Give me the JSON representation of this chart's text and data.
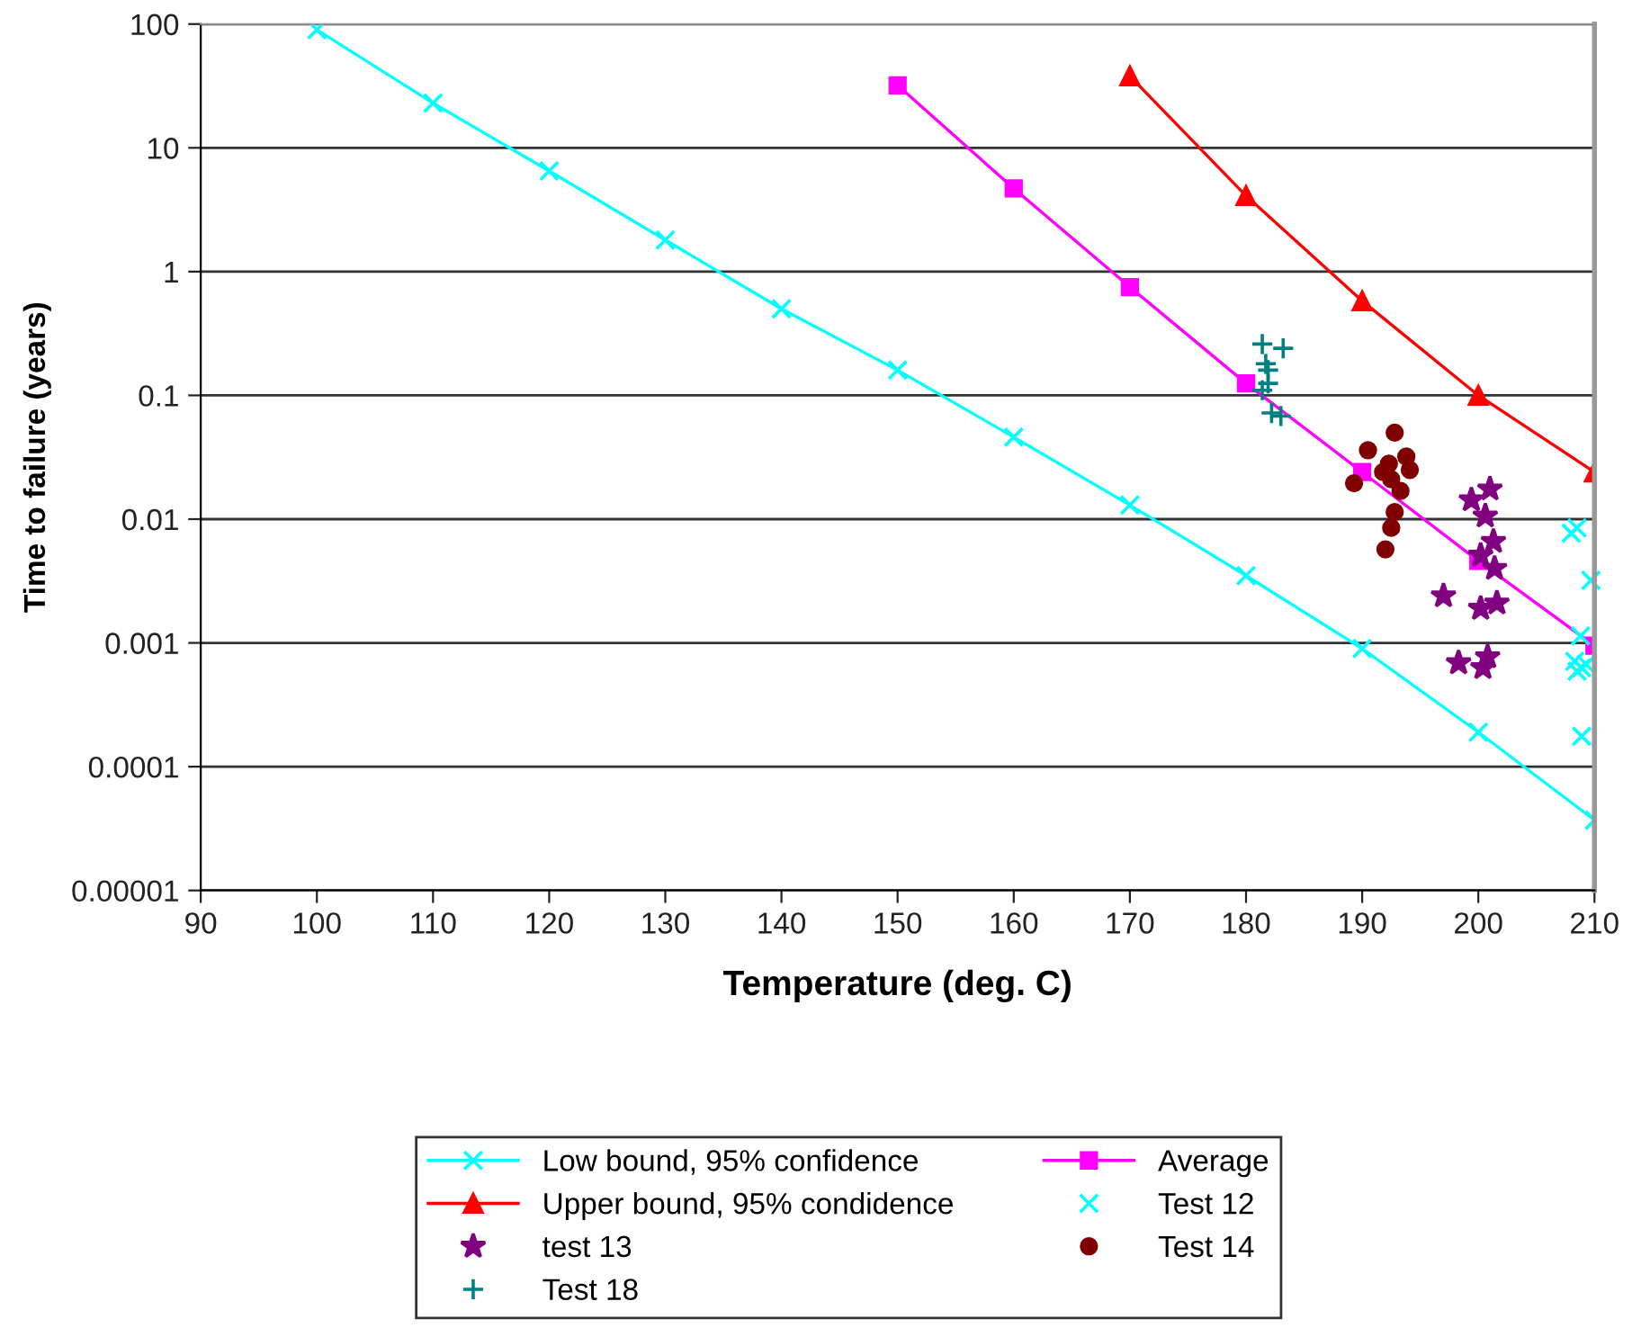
{
  "chart_data": {
    "type": "line",
    "xlabel": "Temperature (deg. C)",
    "ylabel": "Time to failure (years)",
    "log": "y",
    "grid": "y",
    "legend": "bottom",
    "xlim": [
      90,
      210
    ],
    "xticks": [
      90,
      100,
      110,
      120,
      130,
      140,
      150,
      160,
      170,
      180,
      190,
      200,
      210
    ],
    "ylim": [
      1e-05,
      100
    ],
    "yticks": [
      {
        "value": 1e-05,
        "label": "0.00001"
      },
      {
        "value": 0.0001,
        "label": "0.0001"
      },
      {
        "value": 0.001,
        "label": "0.001"
      },
      {
        "value": 0.01,
        "label": "0.01"
      },
      {
        "value": 0.1,
        "label": "0.1"
      },
      1,
      10,
      100
    ],
    "series": [
      {
        "name": "Low bound, 95% confidence",
        "marker": "cross",
        "color": "#00ffff",
        "x": [
          100,
          110,
          120,
          130,
          140,
          150,
          160,
          170,
          180,
          190,
          200,
          210
        ],
        "values": [
          90,
          23,
          6.5,
          1.8,
          0.5,
          0.16,
          0.046,
          0.013,
          0.0035,
          0.0009,
          0.00019,
          3.7e-05
        ]
      },
      {
        "name": "Average",
        "marker": "square",
        "color": "#ff00ff",
        "x": [
          150,
          160,
          170,
          180,
          190,
          200,
          210
        ],
        "values": [
          32,
          4.7,
          0.75,
          0.125,
          0.024,
          0.0046,
          0.00095
        ]
      },
      {
        "name": "Upper bound, 95% condidence",
        "marker": "triangle",
        "color": "#ff0000",
        "x": [
          170,
          180,
          190,
          200,
          210
        ],
        "values": [
          38,
          4.1,
          0.58,
          0.1,
          0.024
        ]
      },
      {
        "name": "Test 12",
        "type": "scatter",
        "marker": "cross",
        "color": "#00ffff",
        "x": [
          208.0,
          208.5,
          209.7,
          208.8,
          208.3,
          208.9,
          208.5,
          209.3,
          208.9
        ],
        "values": [
          0.0077,
          0.0085,
          0.0032,
          0.00114,
          0.00071,
          0.00063,
          0.00059,
          0.00067,
          0.000176
        ]
      },
      {
        "name": "test 13",
        "type": "scatter",
        "marker": "star",
        "color": "#800080",
        "x": [
          201.0,
          199.4,
          200.6,
          201.3,
          200.2,
          201.4,
          197.0,
          200.2,
          201.6,
          198.3,
          200.8,
          200.4
        ],
        "values": [
          0.0175,
          0.0143,
          0.0106,
          0.0066,
          0.0051,
          0.004,
          0.0024,
          0.0019,
          0.0021,
          0.00069,
          0.00077,
          0.00063
        ]
      },
      {
        "name": "Test 14",
        "type": "scatter",
        "marker": "circle",
        "color": "#800000",
        "x": [
          192.8,
          190.5,
          193.8,
          192.3,
          194.1,
          191.8,
          192.5,
          189.3,
          193.3,
          192.8,
          192.5,
          192.0
        ],
        "values": [
          0.05,
          0.036,
          0.032,
          0.028,
          0.025,
          0.024,
          0.021,
          0.0195,
          0.0169,
          0.0114,
          0.0085,
          0.0057
        ]
      },
      {
        "name": "Test 18",
        "type": "scatter",
        "marker": "plus",
        "color": "#008080",
        "x": [
          181.4,
          183.2,
          181.7,
          181.9,
          181.9,
          181.4,
          182.2,
          183.0
        ],
        "values": [
          0.26,
          0.24,
          0.18,
          0.16,
          0.125,
          0.11,
          0.072,
          0.068
        ]
      }
    ]
  }
}
